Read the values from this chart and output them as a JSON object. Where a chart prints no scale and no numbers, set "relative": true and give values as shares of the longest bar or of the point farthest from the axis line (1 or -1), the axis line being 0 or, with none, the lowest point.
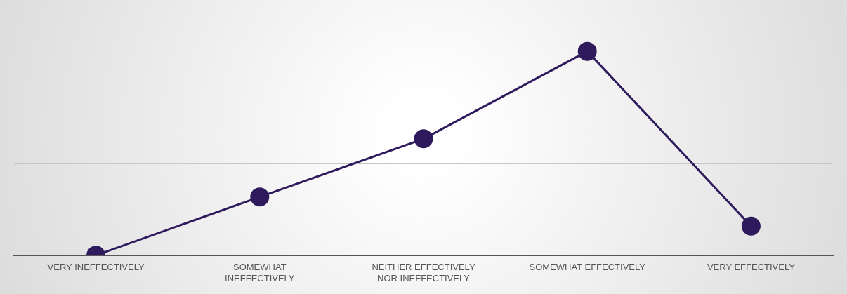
{
  "chart_data": {
    "type": "line",
    "relative": true,
    "categories": [
      "VERY INEFFECTIVELY",
      "SOMEWHAT INEFFECTIVELY",
      "NEITHER EFFECTIVELY NOR INEFFECTIVELY",
      "SOMEWHAT EFFECTIVELY",
      "VERY EFFECTIVELY"
    ],
    "series": [
      {
        "color": "#2e1a5c",
        "values": [
          0,
          0.286,
          0.571,
          1,
          0.143
        ]
      }
    ],
    "grid": "y",
    "marker": "circle",
    "line_style": "solid",
    "legend": false
  }
}
